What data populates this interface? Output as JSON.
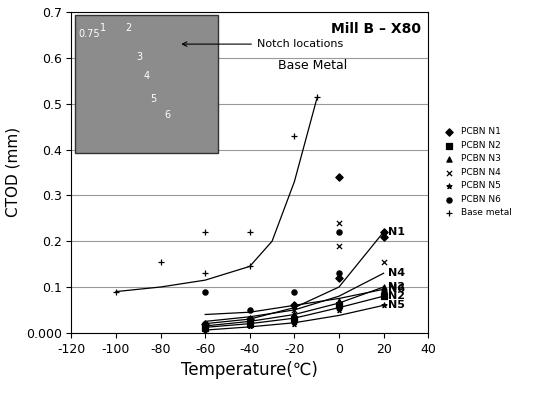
{
  "chart_data": {
    "type": "scatter",
    "title": "Mill B – X80",
    "x_label": "Temperature(℃)",
    "y_label": "CTOD (mm)",
    "xlim": [
      -120,
      40
    ],
    "xticks": [
      -120,
      -100,
      -80,
      -60,
      -40,
      -20,
      0,
      20,
      40
    ],
    "ylim": [
      0,
      0.7
    ],
    "yticks": [
      {
        "value": 0,
        "label": "0.000"
      },
      0.1,
      0.2,
      0.3,
      0.4,
      0.5,
      0.6,
      0.7
    ],
    "grid": true,
    "legend": "right",
    "annotation": "Base Metal",
    "inset": {
      "annotation": "Notch locations",
      "labels": [
        "0.75",
        "1",
        "2",
        "3",
        "4",
        "5",
        "6"
      ]
    },
    "series": [
      {
        "name": "PCBN N1",
        "curve_label": "N1",
        "color": "#000000",
        "marker": "diamond",
        "x": [
          -60,
          -40,
          -20,
          0,
          0,
          20,
          20
        ],
        "values": [
          0.02,
          0.03,
          0.06,
          0.12,
          0.34,
          0.21,
          0.22
        ],
        "fit_x": [
          -60,
          -40,
          -20,
          0,
          20
        ],
        "fit_values": [
          0.02,
          0.03,
          0.055,
          0.1,
          0.22
        ]
      },
      {
        "name": "PCBN N2",
        "curve_label": "N2",
        "color": "#000000",
        "marker": "square",
        "x": [
          -60,
          -40,
          -20,
          0,
          20
        ],
        "values": [
          0.01,
          0.02,
          0.03,
          0.06,
          0.08
        ],
        "fit_x": [
          -60,
          -40,
          -20,
          0,
          20
        ],
        "fit_values": [
          0.012,
          0.02,
          0.032,
          0.055,
          0.08
        ]
      },
      {
        "name": "PCBN N3",
        "curve_label": "N3",
        "color": "#000000",
        "marker": "triangle",
        "x": [
          -60,
          -40,
          -20,
          0,
          20
        ],
        "values": [
          0.015,
          0.025,
          0.04,
          0.07,
          0.1
        ],
        "fit_x": [
          -60,
          -40,
          -20,
          0,
          20
        ],
        "fit_values": [
          0.015,
          0.025,
          0.04,
          0.065,
          0.1
        ]
      },
      {
        "name": "PCBN N4",
        "curve_label": "N4",
        "color": "#000000",
        "marker": "x",
        "x": [
          -60,
          -40,
          -20,
          0,
          0,
          20
        ],
        "values": [
          0.02,
          0.03,
          0.05,
          0.24,
          0.19,
          0.155
        ],
        "fit_x": [
          -60,
          -40,
          -20,
          0,
          20
        ],
        "fit_values": [
          0.025,
          0.035,
          0.05,
          0.08,
          0.13
        ]
      },
      {
        "name": "PCBN N5",
        "curve_label": "N5",
        "color": "#000000",
        "marker": "star",
        "x": [
          -60,
          -40,
          -20,
          0,
          20
        ],
        "values": [
          0.005,
          0.015,
          0.02,
          0.05,
          0.06
        ],
        "fit_x": [
          -60,
          -40,
          -20,
          0,
          20
        ],
        "fit_values": [
          0.006,
          0.013,
          0.022,
          0.038,
          0.06
        ]
      },
      {
        "name": "PCBN N6",
        "curve_label": "N6",
        "color": "#000000",
        "marker": "circle",
        "x": [
          -60,
          -40,
          -20,
          0,
          0,
          20
        ],
        "values": [
          0.09,
          0.05,
          0.09,
          0.22,
          0.13,
          0.09
        ],
        "fit_x": [
          -60,
          -40,
          -20,
          0,
          20
        ],
        "fit_values": [
          0.04,
          0.045,
          0.06,
          0.075,
          0.095
        ]
      },
      {
        "name": "Base metal",
        "color": "#000000",
        "marker": "plus",
        "x": [
          -100,
          -80,
          -60,
          -60,
          -40,
          -40,
          -20,
          -10
        ],
        "values": [
          0.09,
          0.155,
          0.22,
          0.13,
          0.22,
          0.145,
          0.43,
          0.515
        ],
        "fit_x": [
          -100,
          -80,
          -60,
          -40,
          -30,
          -20,
          -10
        ],
        "fit_values": [
          0.09,
          0.1,
          0.115,
          0.145,
          0.2,
          0.33,
          0.51
        ]
      }
    ]
  }
}
